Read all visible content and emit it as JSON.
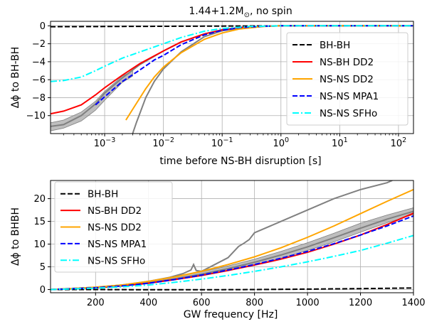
{
  "chart_data": [
    {
      "type": "line",
      "title_main": "1.44+1.2M",
      "title_sub": "⊙",
      "title_tail": ", no spin",
      "xlabel": "time before NS-BH disruption [s]",
      "ylabel": "Δϕ to BH-BH",
      "xscale": "log",
      "xlim": [
        0.00012,
        180
      ],
      "ylim": [
        -12,
        0.5
      ],
      "xticks": [
        {
          "v": 0.001,
          "base": "10",
          "exp": "−3"
        },
        {
          "v": 0.01,
          "base": "10",
          "exp": "−2"
        },
        {
          "v": 0.1,
          "base": "10",
          "exp": "−1"
        },
        {
          "v": 1,
          "base": "10",
          "exp": "0"
        },
        {
          "v": 10,
          "base": "10",
          "exp": "1"
        },
        {
          "v": 100,
          "base": "10",
          "exp": "2"
        }
      ],
      "yticks": [
        {
          "v": 0,
          "label": "0"
        },
        {
          "v": -2,
          "label": "−2"
        },
        {
          "v": -4,
          "label": "−4"
        },
        {
          "v": -6,
          "label": "−6"
        },
        {
          "v": -8,
          "label": "−8"
        },
        {
          "v": -10,
          "label": "−10"
        }
      ],
      "grid": true,
      "legend_position": "right",
      "series": [
        {
          "name": "BH-BH",
          "color": "#000000",
          "dash": "dashed",
          "x": [
            0.00012,
            0.001,
            0.01,
            0.1,
            1,
            10,
            180
          ],
          "y": [
            -0.1,
            -0.08,
            -0.05,
            -0.03,
            -0.01,
            0,
            0
          ]
        },
        {
          "name": "NS-BH DD2",
          "color": "#ff0000",
          "dash": "solid",
          "x": [
            0.00012,
            0.0002,
            0.0004,
            0.0007,
            0.001,
            0.002,
            0.004,
            0.01,
            0.02,
            0.05,
            0.1,
            0.2,
            0.5,
            1,
            180
          ],
          "y": [
            -9.8,
            -9.5,
            -8.8,
            -7.7,
            -6.9,
            -5.5,
            -4.2,
            -2.8,
            -1.8,
            -0.9,
            -0.45,
            -0.2,
            -0.05,
            0,
            0
          ]
        },
        {
          "name": "NS-NS DD2",
          "color": "#ffa500",
          "dash": "solid",
          "x": [
            0.0023,
            0.003,
            0.005,
            0.007,
            0.01,
            0.02,
            0.05,
            0.1,
            0.2,
            0.5,
            1,
            180
          ],
          "y": [
            -10.5,
            -9.3,
            -7.0,
            -5.7,
            -4.6,
            -3.0,
            -1.5,
            -0.8,
            -0.35,
            -0.08,
            0,
            0
          ]
        },
        {
          "name": "NS-NS MPA1",
          "color": "#0000ff",
          "dash": "dashed",
          "x": [
            0.0007,
            0.001,
            0.002,
            0.004,
            0.007,
            0.01,
            0.02,
            0.05,
            0.1,
            0.2,
            0.5,
            1,
            180
          ],
          "y": [
            -8.8,
            -7.9,
            -6.2,
            -4.9,
            -3.8,
            -3.3,
            -2.1,
            -1.0,
            -0.5,
            -0.2,
            -0.05,
            0,
            0
          ]
        },
        {
          "name": "NS-NS SFHo",
          "color": "#00ffff",
          "dash": "dashdot",
          "x": [
            0.00012,
            0.0002,
            0.0004,
            0.0007,
            0.001,
            0.002,
            0.004,
            0.01,
            0.02,
            0.05,
            0.1,
            0.3,
            1,
            180
          ],
          "y": [
            -6.2,
            -6.1,
            -5.7,
            -5.0,
            -4.5,
            -3.6,
            -2.9,
            -2.0,
            -1.3,
            -0.6,
            -0.3,
            -0.07,
            0,
            0
          ]
        }
      ],
      "gray_curves": [
        {
          "x": [
            0.003,
            0.0035,
            0.004,
            0.005,
            0.007,
            0.01,
            0.02,
            0.05,
            0.1,
            0.3,
            1,
            180
          ],
          "y": [
            -12,
            -10.7,
            -9.7,
            -8.0,
            -6.2,
            -4.8,
            -2.9,
            -1.2,
            -0.55,
            -0.12,
            0,
            0
          ]
        },
        {
          "x": [
            0.00012,
            0.0002,
            0.0004,
            0.0007,
            0.001,
            0.002,
            0.004,
            0.01,
            0.02,
            0.05,
            0.1,
            0.2,
            0.5,
            1,
            180
          ],
          "y": [
            -11.2,
            -11.0,
            -10.0,
            -8.7,
            -7.5,
            -5.8,
            -4.3,
            -2.8,
            -1.8,
            -0.9,
            -0.45,
            -0.2,
            -0.05,
            0,
            0
          ]
        }
      ],
      "gray_band": {
        "x": [
          0.00012,
          0.0002,
          0.0004,
          0.0007,
          0.001,
          0.002,
          0.003
        ],
        "lower": [
          -11.7,
          -11.4,
          -10.6,
          -9.4,
          -8.3,
          -6.3,
          -5.6
        ],
        "upper": [
          -10.8,
          -10.5,
          -9.6,
          -8.4,
          -7.3,
          -5.6,
          -5.0
        ]
      }
    },
    {
      "type": "line",
      "xlabel": "GW frequency [Hz]",
      "ylabel": "Δϕ to BHBH",
      "xscale": "linear",
      "xlim": [
        30,
        1400
      ],
      "ylim": [
        -0.7,
        24
      ],
      "xticks": [
        {
          "v": 200,
          "label": "200"
        },
        {
          "v": 400,
          "label": "400"
        },
        {
          "v": 600,
          "label": "600"
        },
        {
          "v": 800,
          "label": "800"
        },
        {
          "v": 1000,
          "label": "1000"
        },
        {
          "v": 1200,
          "label": "1200"
        },
        {
          "v": 1400,
          "label": "1400"
        }
      ],
      "yticks": [
        {
          "v": 0,
          "label": "0"
        },
        {
          "v": 5,
          "label": "5"
        },
        {
          "v": 10,
          "label": "10"
        },
        {
          "v": 15,
          "label": "15"
        },
        {
          "v": 20,
          "label": "20"
        }
      ],
      "grid": true,
      "legend_position": "upper-left",
      "series": [
        {
          "name": "BH-BH",
          "color": "#000000",
          "dash": "dashed",
          "x": [
            30,
            200,
            400,
            600,
            800,
            1000,
            1200,
            1400
          ],
          "y": [
            0,
            0,
            -0.05,
            -0.05,
            0,
            0.1,
            0.2,
            0.35
          ]
        },
        {
          "name": "NS-BH DD2",
          "color": "#ff0000",
          "dash": "solid",
          "x": [
            30,
            200,
            300,
            400,
            500,
            600,
            700,
            800,
            900,
            1000,
            1100,
            1200,
            1300,
            1400
          ],
          "y": [
            0,
            0.4,
            0.8,
            1.4,
            2.2,
            3.1,
            4.2,
            5.4,
            6.7,
            8.2,
            10.0,
            12.0,
            14.3,
            16.8
          ]
        },
        {
          "name": "NS-NS DD2",
          "color": "#ffa500",
          "dash": "solid",
          "x": [
            30,
            200,
            300,
            400,
            500,
            600,
            700,
            800,
            900,
            1000,
            1100,
            1200,
            1300,
            1400
          ],
          "y": [
            0,
            0.5,
            1.0,
            1.8,
            2.8,
            4.0,
            5.5,
            7.2,
            9.2,
            11.5,
            14.0,
            16.7,
            19.4,
            22.0
          ]
        },
        {
          "name": "NS-NS MPA1",
          "color": "#0000ff",
          "dash": "dashed",
          "x": [
            30,
            200,
            300,
            400,
            500,
            600,
            700,
            800,
            900,
            1000,
            1100,
            1200,
            1300,
            1400
          ],
          "y": [
            0,
            0.4,
            0.8,
            1.4,
            2.2,
            3.2,
            4.3,
            5.5,
            6.9,
            8.4,
            10.1,
            12.0,
            14.0,
            16.2
          ]
        },
        {
          "name": "NS-NS SFHo",
          "color": "#00ffff",
          "dash": "dashdot",
          "x": [
            30,
            200,
            300,
            400,
            500,
            600,
            700,
            800,
            900,
            1000,
            1100,
            1200,
            1300,
            1400
          ],
          "y": [
            0,
            0.3,
            0.6,
            1.0,
            1.6,
            2.3,
            3.1,
            4.0,
            5.0,
            6.1,
            7.3,
            8.6,
            10.2,
            11.9
          ]
        }
      ],
      "gray_curves": [
        {
          "x": [
            30,
            200,
            300,
            400,
            480,
            530,
            560,
            570,
            580,
            600,
            650,
            700,
            740,
            760,
            780,
            800,
            900,
            1000,
            1100,
            1200,
            1300,
            1320
          ],
          "y": [
            0,
            0.5,
            1.0,
            1.8,
            2.7,
            3.5,
            4.3,
            5.5,
            4.2,
            4.0,
            5.5,
            7.0,
            9.5,
            10.2,
            11.0,
            12.5,
            15.0,
            17.5,
            20.0,
            22.0,
            23.5,
            24.0
          ]
        },
        {
          "x": [
            30,
            200,
            300,
            400,
            500,
            600,
            700,
            800,
            900,
            1000,
            1100,
            1200,
            1300,
            1400
          ],
          "y": [
            0,
            0.4,
            0.9,
            1.5,
            2.4,
            3.4,
            4.6,
            6.0,
            7.6,
            9.4,
            11.4,
            13.5,
            15.5,
            17.2
          ]
        }
      ],
      "gray_band": {
        "x": [
          30,
          200,
          300,
          400,
          500,
          600,
          700,
          800,
          900,
          1000,
          1100,
          1200,
          1300,
          1400
        ],
        "lower": [
          0,
          0.3,
          0.7,
          1.3,
          2.1,
          3.0,
          4.1,
          5.4,
          6.9,
          8.6,
          10.5,
          12.6,
          14.7,
          16.5
        ],
        "upper": [
          0,
          0.6,
          1.1,
          1.8,
          2.8,
          3.9,
          5.2,
          6.7,
          8.4,
          10.3,
          12.4,
          14.6,
          16.4,
          18.0
        ]
      }
    }
  ]
}
